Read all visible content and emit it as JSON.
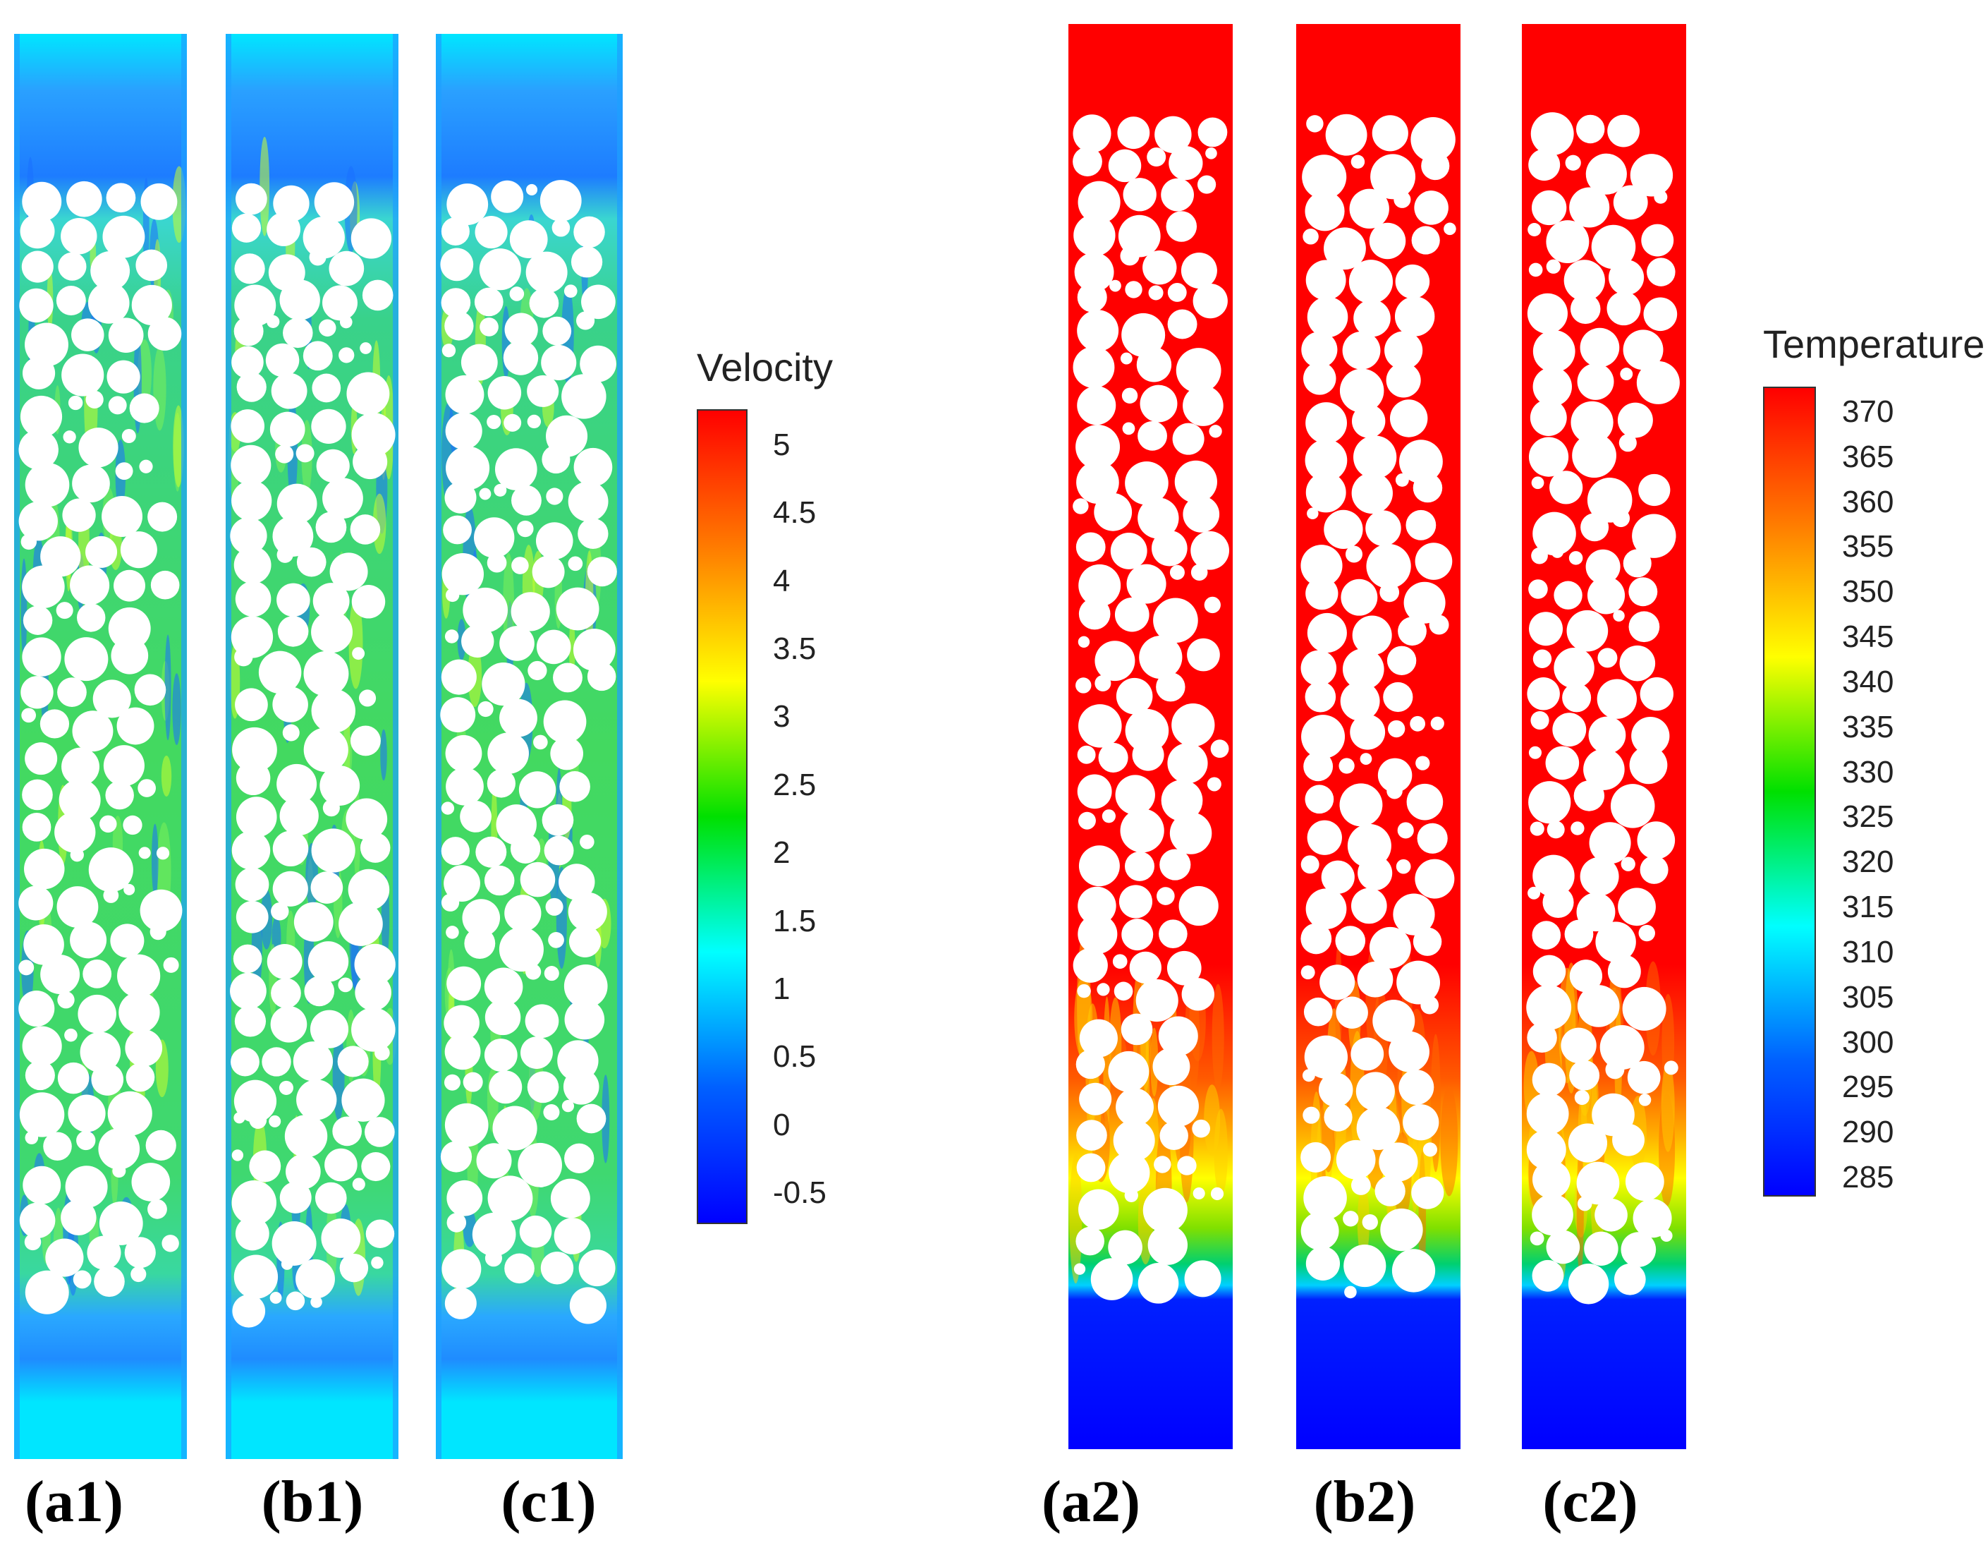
{
  "panels": [
    {
      "id": "a1",
      "label": "(a1)",
      "field": "velocity"
    },
    {
      "id": "b1",
      "label": "(b1)",
      "field": "velocity"
    },
    {
      "id": "c1",
      "label": "(c1)",
      "field": "velocity"
    },
    {
      "id": "a2",
      "label": "(a2)",
      "field": "temperature"
    },
    {
      "id": "b2",
      "label": "(b2)",
      "field": "temperature"
    },
    {
      "id": "c2",
      "label": "(c2)",
      "field": "temperature"
    }
  ],
  "velocity_legend": {
    "title": "Velocity",
    "ticks": [
      "5",
      "4.5",
      "4",
      "3.5",
      "3",
      "2.5",
      "2",
      "1.5",
      "1",
      "0.5",
      "0",
      "-0.5"
    ],
    "colors": [
      "#ff0000",
      "#ff7a00",
      "#ffff00",
      "#00e000",
      "#00ffff",
      "#0060ff",
      "#0000ff"
    ]
  },
  "temperature_legend": {
    "title": "Temperature",
    "ticks": [
      "370",
      "365",
      "360",
      "355",
      "350",
      "345",
      "340",
      "335",
      "330",
      "325",
      "320",
      "315",
      "310",
      "305",
      "300",
      "295",
      "290",
      "285"
    ],
    "colors": [
      "#ff0000",
      "#ff7a00",
      "#ffff00",
      "#00e000",
      "#00ffff",
      "#0060ff",
      "#0000ff"
    ]
  }
}
